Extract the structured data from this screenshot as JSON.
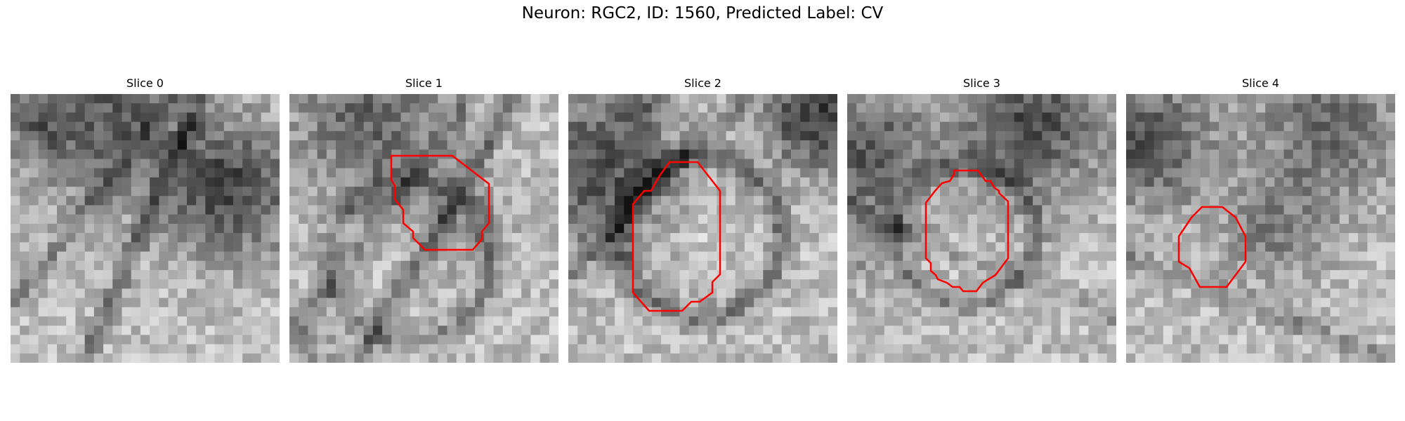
{
  "figure": {
    "title": "Neuron: RGC2, ID: 1560, Predicted Label: CV"
  },
  "contour_color": "#ff0000",
  "panels": [
    {
      "title": "Slice 0",
      "has_contour": false
    },
    {
      "title": "Slice 1",
      "has_contour": true
    },
    {
      "title": "Slice 2",
      "has_contour": true
    },
    {
      "title": "Slice 3",
      "has_contour": true
    },
    {
      "title": "Slice 4",
      "has_contour": true
    }
  ]
}
